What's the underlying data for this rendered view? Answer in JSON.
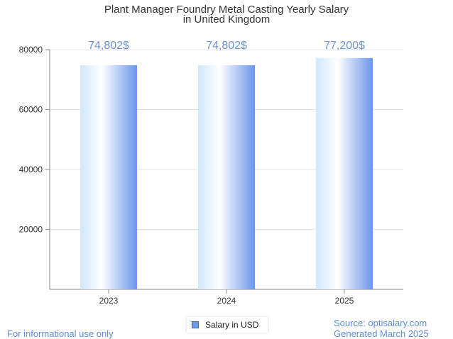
{
  "chart_data": {
    "type": "bar",
    "title_lines": [
      "Plant Manager Foundry Metal Casting Yearly Salary",
      "in United Kingdom"
    ],
    "categories": [
      "2023",
      "2024",
      "2025"
    ],
    "series": [
      {
        "name": "Salary in USD",
        "values": [
          74802,
          74802,
          77200
        ]
      }
    ],
    "data_labels": [
      "74,802$",
      "74,802$",
      "77,200$"
    ],
    "ylim": [
      0,
      80000
    ],
    "yticks": [
      "20000",
      "40000",
      "60000",
      "80000"
    ],
    "grid": true,
    "legend_position": "bottom-center",
    "bar_colors": [
      "#cfe8ff",
      "#ffffff",
      "#6b96ea"
    ]
  },
  "footer": {
    "disclaimer": "For informational use only",
    "source": "Source: optisalary.com",
    "generated": "Generated March 2025"
  }
}
